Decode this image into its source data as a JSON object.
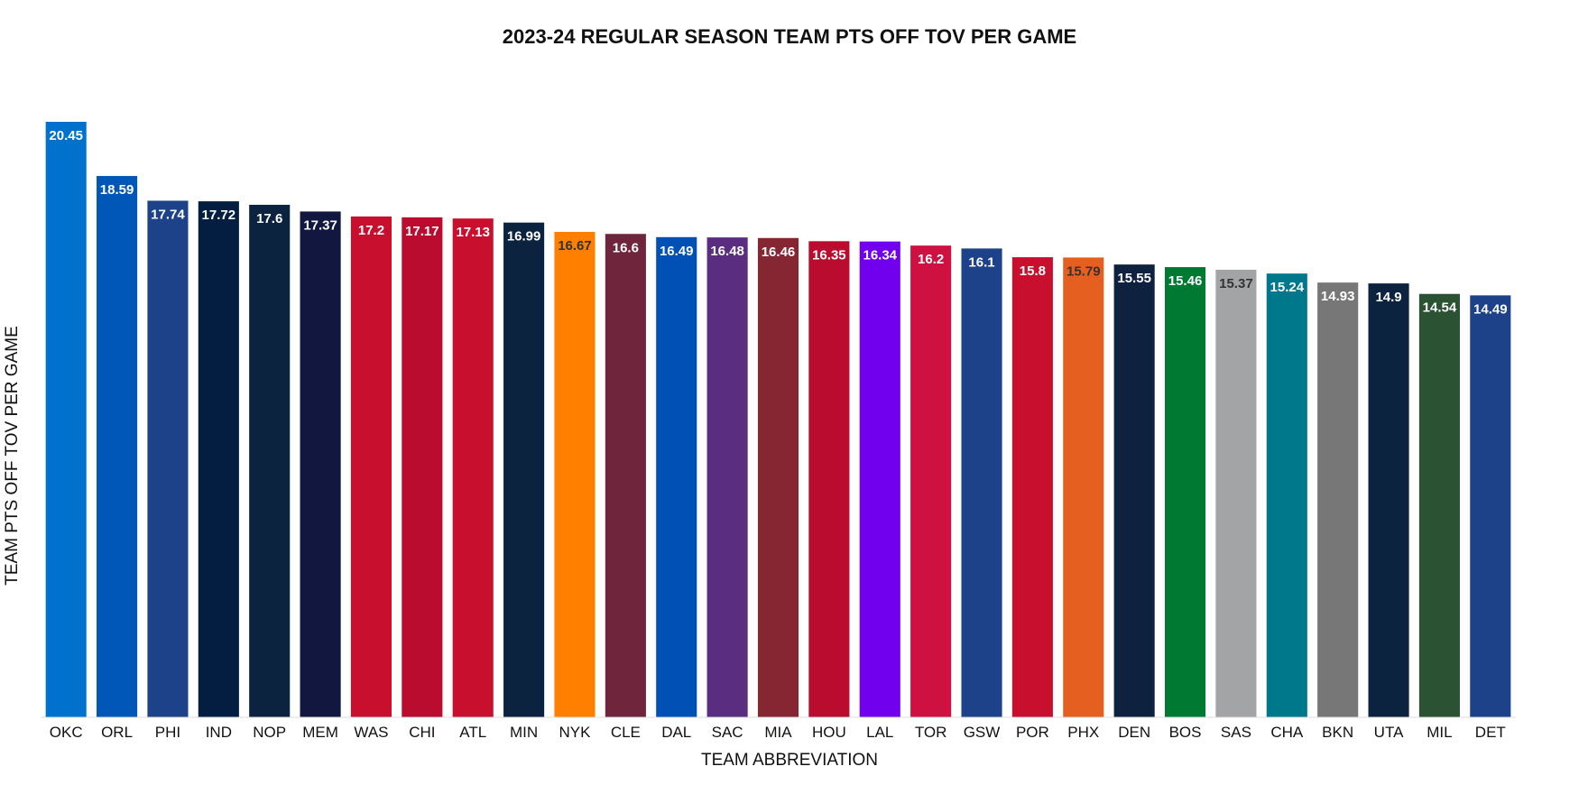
{
  "chart_data": {
    "type": "bar",
    "title": "2023-24 REGULAR SEASON TEAM PTS OFF TOV PER GAME",
    "xlabel": "TEAM ABBREVIATION",
    "ylabel": "TEAM PTS OFF TOV PER GAME",
    "ylim": [
      0,
      21
    ],
    "grid": false,
    "y_ticks_visible": false,
    "categories": [
      "OKC",
      "ORL",
      "PHI",
      "IND",
      "NOP",
      "MEM",
      "WAS",
      "CHI",
      "ATL",
      "MIN",
      "NYK",
      "CLE",
      "DAL",
      "SAC",
      "MIA",
      "HOU",
      "LAL",
      "TOR",
      "GSW",
      "POR",
      "PHX",
      "DEN",
      "BOS",
      "SAS",
      "CHA",
      "BKN",
      "UTA",
      "MIL",
      "DET"
    ],
    "values": [
      20.45,
      18.59,
      17.74,
      17.72,
      17.6,
      17.37,
      17.2,
      17.17,
      17.13,
      16.99,
      16.67,
      16.6,
      16.49,
      16.48,
      16.46,
      16.35,
      16.34,
      16.2,
      16.1,
      15.8,
      15.79,
      15.55,
      15.46,
      15.37,
      15.24,
      14.93,
      14.9,
      14.54,
      14.49
    ],
    "value_labels": [
      "20.45",
      "18.59",
      "17.74",
      "17.72",
      "17.6",
      "17.37",
      "17.2",
      "17.17",
      "17.13",
      "16.99",
      "16.67",
      "16.6",
      "16.49",
      "16.48",
      "16.46",
      "16.35",
      "16.34",
      "16.2",
      "16.1",
      "15.8",
      "15.79",
      "15.55",
      "15.46",
      "15.37",
      "15.24",
      "14.93",
      "14.9",
      "14.54",
      "14.49"
    ],
    "colors": [
      "#0072CE",
      "#0057B8",
      "#1D428A",
      "#041E42",
      "#0C2340",
      "#12173F",
      "#C8102E",
      "#BA0C2F",
      "#C8102E",
      "#0C2340",
      "#FF7F00",
      "#6F263D",
      "#0050B5",
      "#5A2D81",
      "#862633",
      "#BA0C2F",
      "#7000EE",
      "#CE1141",
      "#1D428A",
      "#C8102E",
      "#E56020",
      "#0E2240",
      "#007A33",
      "#A2A4A6",
      "#00788C",
      "#777777",
      "#0C2340",
      "#2C5234",
      "#1D428A"
    ],
    "label_colors": [
      "#ffffff",
      "#ffffff",
      "#ffffff",
      "#ffffff",
      "#ffffff",
      "#ffffff",
      "#ffffff",
      "#ffffff",
      "#ffffff",
      "#ffffff",
      "#333333",
      "#ffffff",
      "#ffffff",
      "#ffffff",
      "#ffffff",
      "#ffffff",
      "#ffffff",
      "#ffffff",
      "#ffffff",
      "#ffffff",
      "#333333",
      "#ffffff",
      "#ffffff",
      "#333333",
      "#ffffff",
      "#ffffff",
      "#ffffff",
      "#ffffff",
      "#ffffff"
    ]
  }
}
